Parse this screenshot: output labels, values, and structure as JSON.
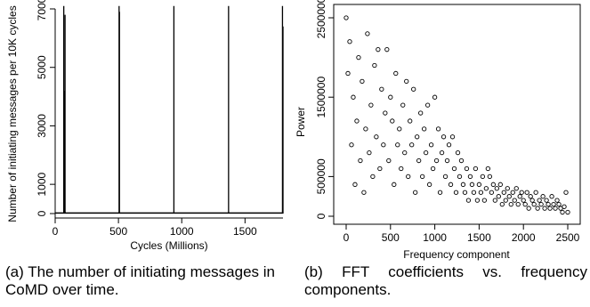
{
  "chart_data": [
    {
      "type": "line",
      "title": "",
      "xlabel": "Cycles (Millions)",
      "ylabel": "Number of initiating messages per 10K cycles",
      "xlim": [
        0,
        1800
      ],
      "ylim": [
        0,
        7000
      ],
      "xticks": [
        0,
        500,
        1000,
        1500
      ],
      "xtick_labels": [
        "0",
        "500",
        "1000",
        "1500"
      ],
      "yticks": [
        0,
        1000,
        3000,
        5000,
        7000
      ],
      "ytick_labels": [
        "0",
        "1000",
        "3000",
        "5000",
        "7000"
      ],
      "spikes": [
        {
          "x": 68,
          "y": 7100
        },
        {
          "x": 72,
          "y": 4200
        },
        {
          "x": 78,
          "y": 6800
        },
        {
          "x": 505,
          "y": 7100
        },
        {
          "x": 508,
          "y": 6900
        },
        {
          "x": 938,
          "y": 7100
        },
        {
          "x": 1370,
          "y": 7100
        },
        {
          "x": 1796,
          "y": 7100
        },
        {
          "x": 1800,
          "y": 6400
        }
      ],
      "baseline": 20,
      "grid": false
    },
    {
      "type": "scatter",
      "title": "",
      "xlabel": "Frequency component",
      "ylabel": "Power",
      "xlim": [
        0,
        2500
      ],
      "ylim": [
        0,
        2500000
      ],
      "xticks": [
        0,
        500,
        1000,
        1500,
        2000,
        2500
      ],
      "xtick_labels": [
        "0",
        "500",
        "1000",
        "1500",
        "2000",
        "2500"
      ],
      "yticks": [
        0,
        500000,
        1500000,
        2500000
      ],
      "ytick_labels": [
        "0",
        "500000",
        "1500000",
        "2500000"
      ],
      "x": [
        0,
        20,
        40,
        60,
        80,
        100,
        120,
        140,
        160,
        180,
        200,
        220,
        240,
        260,
        280,
        300,
        320,
        340,
        360,
        380,
        400,
        420,
        440,
        460,
        480,
        500,
        520,
        540,
        560,
        580,
        600,
        620,
        640,
        660,
        680,
        700,
        720,
        740,
        760,
        780,
        800,
        820,
        840,
        860,
        880,
        900,
        920,
        940,
        960,
        980,
        1000,
        1020,
        1040,
        1060,
        1080,
        1100,
        1120,
        1140,
        1160,
        1180,
        1200,
        1220,
        1240,
        1260,
        1280,
        1300,
        1320,
        1340,
        1360,
        1380,
        1400,
        1420,
        1440,
        1460,
        1480,
        1500,
        1520,
        1540,
        1560,
        1580,
        1600,
        1620,
        1640,
        1660,
        1680,
        1700,
        1720,
        1740,
        1760,
        1780,
        1800,
        1820,
        1840,
        1860,
        1880,
        1900,
        1920,
        1940,
        1960,
        1980,
        2000,
        2020,
        2040,
        2060,
        2080,
        2100,
        2120,
        2140,
        2160,
        2180,
        2200,
        2220,
        2240,
        2260,
        2280,
        2300,
        2320,
        2340,
        2360,
        2380,
        2400,
        2420,
        2440,
        2460,
        2480,
        2500
      ],
      "y": [
        2500000,
        1800000,
        2200000,
        900000,
        1500000,
        400000,
        1200000,
        2000000,
        700000,
        1700000,
        300000,
        1100000,
        2300000,
        800000,
        1400000,
        500000,
        1900000,
        1000000,
        2100000,
        600000,
        1600000,
        900000,
        1300000,
        2100000,
        700000,
        1500000,
        1200000,
        400000,
        1800000,
        900000,
        1100000,
        600000,
        1400000,
        800000,
        1700000,
        500000,
        1200000,
        900000,
        1600000,
        300000,
        1000000,
        700000,
        1300000,
        500000,
        1100000,
        800000,
        1400000,
        400000,
        900000,
        600000,
        1500000,
        700000,
        1100000,
        300000,
        800000,
        1000000,
        500000,
        700000,
        900000,
        400000,
        1000000,
        600000,
        300000,
        800000,
        500000,
        700000,
        400000,
        300000,
        600000,
        200000,
        500000,
        400000,
        300000,
        600000,
        200000,
        400000,
        300000,
        500000,
        200000,
        350000,
        600000,
        500000,
        300000,
        400000,
        200000,
        350000,
        250000,
        400000,
        150000,
        300000,
        200000,
        350000,
        250000,
        150000,
        300000,
        200000,
        350000,
        150000,
        250000,
        300000,
        200000,
        150000,
        300000,
        100000,
        250000,
        200000,
        150000,
        300000,
        100000,
        200000,
        150000,
        250000,
        100000,
        200000,
        150000,
        100000,
        250000,
        150000,
        100000,
        200000,
        150000,
        100000,
        50000,
        120000,
        300000,
        50000
      ],
      "grid": false
    }
  ],
  "captions": {
    "a": "(a) The number of initiating messages in CoMD over time.",
    "b": "(b) FFT coefficients vs. frequency components."
  }
}
